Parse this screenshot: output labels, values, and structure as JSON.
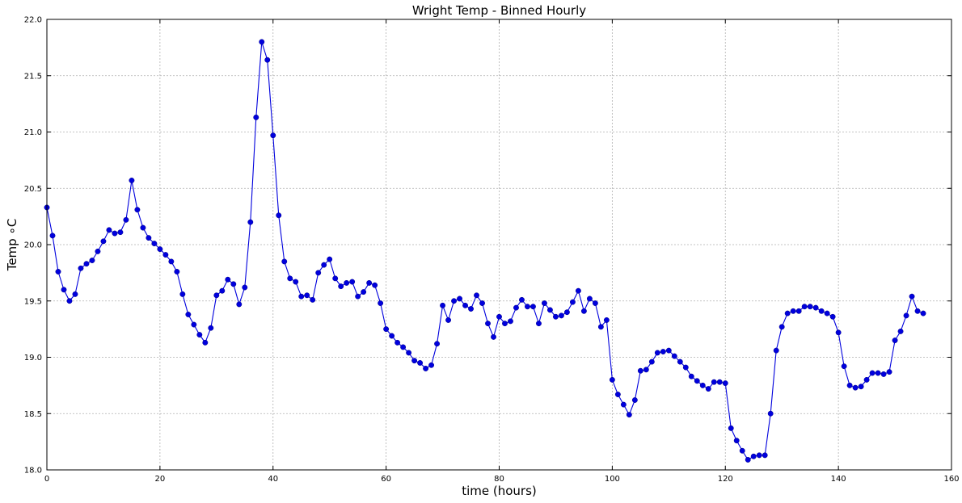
{
  "chart_data": {
    "type": "line",
    "title": "Wright Temp - Binned Hourly",
    "xlabel": "time (hours)",
    "ylabel": "Temp ∘C",
    "xlim": [
      0,
      160
    ],
    "ylim": [
      18.0,
      22.0
    ],
    "xticks": [
      0,
      20,
      40,
      60,
      80,
      100,
      120,
      140,
      160
    ],
    "yticks": [
      "18.0",
      "18.5",
      "19.0",
      "19.5",
      "20.0",
      "20.5",
      "21.0",
      "21.5",
      "22.0"
    ],
    "grid": true,
    "marker": "circle",
    "color": "#0000dd",
    "series": [
      {
        "x": [
          0,
          1,
          2,
          3,
          4,
          5,
          6,
          7,
          8,
          9,
          10,
          11,
          12,
          13,
          14,
          15,
          16,
          17,
          18,
          19,
          20,
          21,
          22,
          23,
          24,
          25,
          26,
          27,
          28,
          29,
          30,
          31,
          32,
          33,
          34,
          35,
          36,
          37,
          38,
          39,
          40,
          41,
          42,
          43,
          44,
          45,
          46,
          47,
          48,
          49,
          50,
          51,
          52,
          53,
          54,
          55,
          56,
          57,
          58,
          59,
          60,
          61,
          62,
          63,
          64,
          65,
          66,
          67,
          68,
          69,
          70,
          71,
          72,
          73,
          74,
          75,
          76,
          77,
          78,
          79,
          80,
          81,
          82,
          83,
          84,
          85,
          86,
          87,
          88,
          89,
          90,
          91,
          92,
          93,
          94,
          95,
          96,
          97,
          98,
          99,
          100,
          101,
          102,
          103,
          104,
          105,
          106,
          107,
          108,
          109,
          110,
          111,
          112,
          113,
          114,
          115,
          116,
          117,
          118,
          119,
          120,
          121,
          122,
          123,
          124,
          125,
          126,
          127,
          128,
          129,
          130,
          131,
          132,
          133,
          134,
          135,
          136,
          137,
          138,
          139,
          140,
          141,
          142,
          143,
          144,
          145,
          146,
          147,
          148,
          149,
          150,
          151,
          152,
          153,
          154,
          155
        ],
        "y": [
          20.33,
          20.08,
          19.76,
          19.6,
          19.5,
          19.56,
          19.79,
          19.83,
          19.86,
          19.94,
          20.03,
          20.13,
          20.1,
          20.11,
          20.22,
          20.57,
          20.31,
          20.15,
          20.06,
          20.01,
          19.96,
          19.91,
          19.85,
          19.76,
          19.56,
          19.38,
          19.29,
          19.2,
          19.13,
          19.26,
          19.55,
          19.59,
          19.69,
          19.65,
          19.47,
          19.62,
          20.2,
          21.13,
          21.8,
          21.64,
          20.97,
          20.26,
          19.85,
          19.7,
          19.67,
          19.54,
          19.55,
          19.51,
          19.75,
          19.82,
          19.87,
          19.7,
          19.63,
          19.66,
          19.67,
          19.54,
          19.58,
          19.66,
          19.64,
          19.48,
          19.25,
          19.19,
          19.13,
          19.09,
          19.04,
          18.97,
          18.95,
          18.9,
          18.93,
          19.12,
          19.46,
          19.33,
          19.5,
          19.52,
          19.46,
          19.43,
          19.55,
          19.48,
          19.3,
          19.18,
          19.36,
          19.3,
          19.32,
          19.44,
          19.51,
          19.45,
          19.45,
          19.3,
          19.48,
          19.42,
          19.36,
          19.37,
          19.4,
          19.49,
          19.59,
          19.41,
          19.52,
          19.48,
          19.27,
          19.33,
          18.8,
          18.67,
          18.58,
          18.49,
          18.62,
          18.88,
          18.89,
          18.96,
          19.04,
          19.05,
          19.06,
          19.01,
          18.96,
          18.91,
          18.83,
          18.79,
          18.75,
          18.72,
          18.78,
          18.78,
          18.77,
          18.37,
          18.26,
          18.17,
          18.09,
          18.12,
          18.13,
          18.13,
          18.5,
          19.06,
          19.27,
          19.39,
          19.41,
          19.41,
          19.45,
          19.45,
          19.44,
          19.41,
          19.39,
          19.36,
          19.22,
          18.92,
          18.75,
          18.73,
          18.74,
          18.8,
          18.86,
          18.86,
          18.85,
          18.87,
          19.15,
          19.23,
          19.37,
          19.54,
          19.41,
          19.39
        ]
      }
    ]
  }
}
